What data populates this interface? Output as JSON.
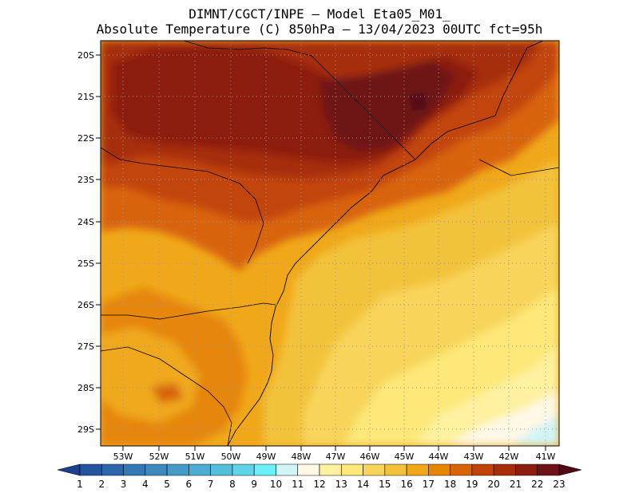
{
  "header": {
    "line1": "DIMNT/CGCT/INPE –  Model Eta05_M01_",
    "line2": "Absolute Temperature (C) 850hPa –  13/04/2023 00UTC fct=95h"
  },
  "axes": {
    "lat_labels": [
      "20S",
      "21S",
      "22S",
      "23S",
      "24S",
      "25S",
      "26S",
      "27S",
      "28S",
      "29S"
    ],
    "lon_labels": [
      "53W",
      "52W",
      "51W",
      "50W",
      "49W",
      "48W",
      "47W",
      "46W",
      "45W",
      "44W",
      "43W",
      "42W",
      "41W"
    ]
  },
  "colorbar": {
    "labels": [
      "1",
      "2",
      "3",
      "4",
      "5",
      "6",
      "7",
      "8",
      "9",
      "10",
      "11",
      "12",
      "13",
      "14",
      "15",
      "16",
      "17",
      "18",
      "19",
      "20",
      "21",
      "22",
      "23"
    ],
    "colors": [
      "#1d3f8f",
      "#25549f",
      "#2c67ac",
      "#3479b6",
      "#3c8abf",
      "#449bc8",
      "#4cacd1",
      "#54bfdc",
      "#5fd3e8",
      "#6cf0f8",
      "#d2f4f6",
      "#fff8e6",
      "#fff1a0",
      "#fde879",
      "#f8d55a",
      "#f3c23a",
      "#f0a81a",
      "#e68607",
      "#d86408",
      "#c24408",
      "#a72e08",
      "#8c1d10",
      "#6e1217",
      "#4f0a14"
    ]
  }
}
